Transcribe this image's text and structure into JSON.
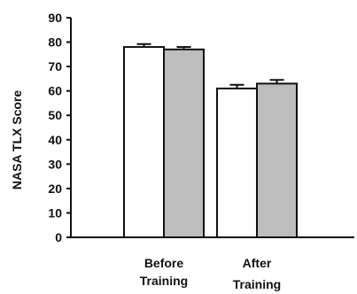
{
  "chart_data": {
    "type": "bar",
    "title": "",
    "xlabel": "",
    "ylabel": "NASA TLX Score",
    "ylim": [
      0,
      90
    ],
    "yticks": [
      0,
      10,
      20,
      30,
      40,
      50,
      60,
      70,
      80,
      90
    ],
    "categories": [
      [
        "Before",
        "Training"
      ],
      [
        "After",
        "Training"
      ]
    ],
    "series": [
      {
        "fill": "#ffffff",
        "values": [
          78,
          61
        ],
        "errors": [
          1.2,
          1.5
        ]
      },
      {
        "fill": "#bdbdbd",
        "values": [
          77,
          63
        ],
        "errors": [
          1.0,
          1.5
        ]
      }
    ],
    "legend": "none",
    "grid": false
  }
}
